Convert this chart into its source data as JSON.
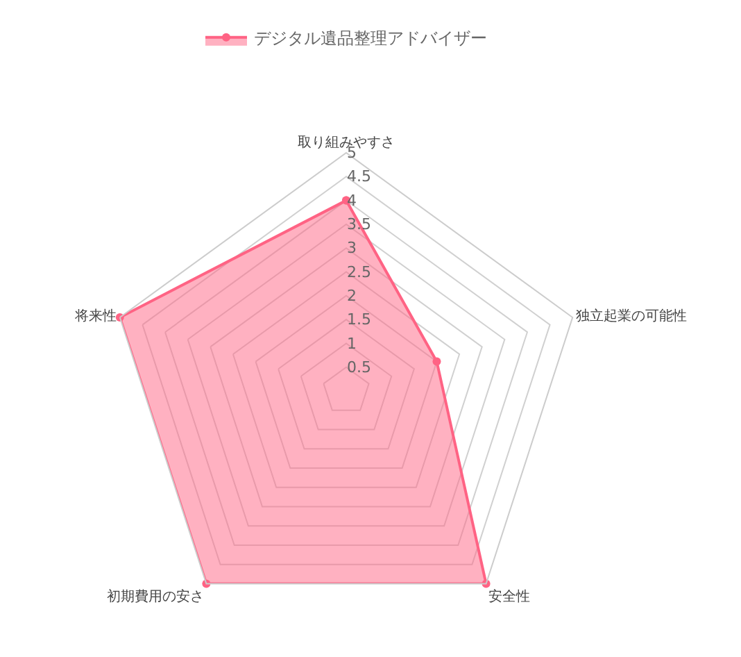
{
  "chart_data": {
    "type": "radar",
    "categories": [
      "取り組みやすさ",
      "独立起業の可能性",
      "安全性",
      "初期費用の安さ",
      "将来性"
    ],
    "series": [
      {
        "name": "デジタル遺品整理アドバイザー",
        "color": "#ff6384",
        "values": [
          4,
          2,
          5,
          5,
          5
        ]
      }
    ],
    "ylim": [
      0,
      5
    ],
    "yticks": [
      0.5,
      1,
      1.5,
      2,
      2.5,
      3,
      3.5,
      4,
      4.5,
      5
    ],
    "legend": "top",
    "marker": "circle",
    "grid": true
  }
}
